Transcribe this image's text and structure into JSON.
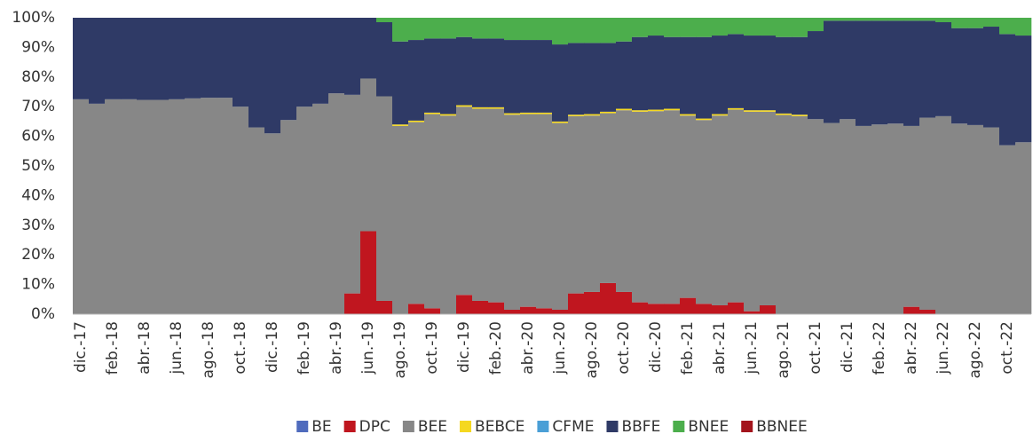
{
  "chart_data": {
    "type": "stacked_bar",
    "categories": [
      "dic.-17",
      null,
      "feb.-18",
      null,
      "abr.-18",
      null,
      "jun.-18",
      null,
      "ago.-18",
      null,
      "oct.-18",
      null,
      "dic.-18",
      null,
      "feb.-19",
      null,
      "abr.-19",
      null,
      "jun.-19",
      null,
      "ago.-19",
      null,
      "oct.-19",
      null,
      "dic.-19",
      null,
      "feb.-20",
      null,
      "abr.-20",
      null,
      "jun.-20",
      null,
      "ago.-20",
      null,
      "oct.-20",
      null,
      "dic.-20",
      null,
      "feb.-21",
      null,
      "abr.-21",
      null,
      "jun.-21",
      null,
      "ago.-21",
      null,
      "oct.-21",
      null,
      "dic.-21",
      null,
      "feb.-22",
      null,
      "abr.-22",
      null,
      "jun.-22",
      null,
      "ago.-22",
      null,
      "oct.-22",
      null
    ],
    "series": [
      {
        "name": "BE",
        "color": "#4f6bbd",
        "values": [
          0,
          0,
          0,
          0,
          0,
          0,
          0,
          0,
          0,
          0,
          0,
          0,
          0,
          0,
          0,
          0,
          0,
          0,
          0,
          0,
          0,
          0,
          0,
          0,
          0,
          0,
          0,
          0,
          0,
          0,
          0,
          0,
          0,
          0,
          0,
          0,
          0,
          0,
          0,
          0,
          0,
          0,
          0,
          0,
          0,
          0,
          0,
          0,
          0,
          0,
          0,
          0,
          0,
          0,
          0,
          0,
          0,
          0,
          0,
          0
        ]
      },
      {
        "name": "DPC",
        "color": "#c0161f",
        "values": [
          0,
          0,
          0,
          0,
          0,
          0,
          0,
          0,
          0,
          0,
          0,
          0,
          0,
          0,
          0,
          0,
          0,
          7,
          28,
          4.5,
          0,
          3.5,
          2,
          0,
          6.5,
          4.5,
          4,
          1.5,
          2.5,
          2,
          1.5,
          7,
          7.5,
          10.5,
          7.5,
          4,
          3.5,
          3.5,
          5.5,
          3.5,
          3,
          4,
          1,
          3,
          0,
          0,
          0,
          0,
          0,
          0,
          0,
          0,
          2.5,
          1.5,
          0,
          0,
          0,
          0,
          0,
          0
        ]
      },
      {
        "name": "BEE",
        "color": "#878787",
        "values": [
          72.5,
          71,
          72.5,
          72.5,
          72.3,
          72.3,
          72.5,
          72.8,
          73,
          73,
          70,
          63,
          61,
          65.5,
          70,
          71,
          74.5,
          67,
          51.5,
          69,
          63.5,
          61.3,
          65.5,
          67,
          63.5,
          64.8,
          65.3,
          65.8,
          65,
          65.5,
          63,
          59.8,
          59.5,
          57.3,
          61.3,
          64.3,
          65,
          65.3,
          61.5,
          62,
          64,
          65,
          67.3,
          65.3,
          67.2,
          66.8,
          65.8,
          64.5,
          65.8,
          63.5,
          64,
          64.3,
          61,
          64.8,
          66.8,
          64.3,
          63.8,
          63,
          57,
          58
        ]
      },
      {
        "name": "BEBCE",
        "color": "#f5d820",
        "values": [
          0,
          0,
          0,
          0,
          0,
          0,
          0,
          0,
          0,
          0,
          0,
          0,
          0,
          0,
          0,
          0,
          0,
          0,
          0,
          0,
          0.5,
          0.5,
          0.5,
          0.5,
          0.5,
          0.5,
          0.5,
          0.5,
          0.5,
          0.5,
          0.5,
          0.5,
          0.5,
          0.5,
          0.5,
          0.5,
          0.5,
          0.5,
          0.5,
          0.5,
          0.5,
          0.5,
          0.5,
          0.5,
          0.5,
          0.5,
          0,
          0,
          0,
          0,
          0,
          0,
          0,
          0,
          0,
          0,
          0,
          0,
          0,
          0
        ]
      },
      {
        "name": "CFME",
        "color": "#4a9fd6",
        "values": [
          0,
          0,
          0,
          0,
          0,
          0,
          0,
          0,
          0,
          0,
          0,
          0,
          0,
          0,
          0,
          0,
          0,
          0,
          0,
          0,
          0,
          0,
          0,
          0,
          0,
          0,
          0,
          0,
          0,
          0,
          0,
          0,
          0,
          0,
          0,
          0,
          0,
          0,
          0,
          0,
          0,
          0,
          0,
          0,
          0,
          0,
          0,
          0,
          0,
          0,
          0,
          0,
          0,
          0,
          0,
          0,
          0,
          0,
          0,
          0
        ]
      },
      {
        "name": "BBFE",
        "color": "#2f3a66",
        "values": [
          27.5,
          29,
          27.5,
          27.5,
          27.7,
          27.7,
          27.5,
          27.2,
          27,
          27,
          30,
          37,
          39,
          34.5,
          30,
          29,
          25.5,
          26,
          20.5,
          25,
          28,
          27.2,
          25,
          25.5,
          23,
          23.2,
          23.2,
          24.7,
          24.5,
          24.5,
          26,
          24.2,
          24,
          23.2,
          22.7,
          24.7,
          25,
          24.2,
          26,
          27.5,
          26.5,
          25,
          25.2,
          25.2,
          25.8,
          26.2,
          29.7,
          34.5,
          33.2,
          35.5,
          35,
          34.7,
          35.5,
          32.7,
          31.7,
          32.2,
          32.7,
          34,
          37.5,
          36
        ]
      },
      {
        "name": "BNEE",
        "color": "#4cae4c",
        "values": [
          0,
          0,
          0,
          0,
          0,
          0,
          0,
          0,
          0,
          0,
          0,
          0,
          0,
          0,
          0,
          0,
          0,
          0,
          0,
          1.5,
          8,
          7.5,
          7,
          7,
          6.5,
          7,
          7,
          7.5,
          7.5,
          7.5,
          9,
          8.5,
          8.5,
          8.5,
          8,
          6.5,
          6,
          6.5,
          6.5,
          6.5,
          6,
          5.5,
          6,
          6,
          6.5,
          6.5,
          4.5,
          1,
          1,
          1,
          1,
          1,
          1,
          1,
          1.5,
          3.5,
          3.5,
          3,
          5.5,
          6
        ]
      },
      {
        "name": "BBNEE",
        "color": "#a3141c",
        "values": [
          0,
          0,
          0,
          0,
          0,
          0,
          0,
          0,
          0,
          0,
          0,
          0,
          0,
          0,
          0,
          0,
          0,
          0,
          0,
          0,
          0,
          0,
          0,
          0,
          0,
          0,
          0,
          0,
          0,
          0,
          0,
          0,
          0,
          0,
          0,
          0,
          0,
          0,
          0,
          0,
          0,
          0,
          0,
          0,
          0,
          0,
          0,
          0,
          0,
          0,
          0,
          0,
          0,
          0,
          0,
          0,
          0,
          0,
          0,
          0
        ]
      }
    ],
    "ylim": [
      0,
      100
    ],
    "yticks": [
      {
        "value": 0,
        "label": "0%"
      },
      {
        "value": 10,
        "label": "10%"
      },
      {
        "value": 20,
        "label": "20%"
      },
      {
        "value": 30,
        "label": "30%"
      },
      {
        "value": 40,
        "label": "40%"
      },
      {
        "value": 50,
        "label": "50%"
      },
      {
        "value": 60,
        "label": "60%"
      },
      {
        "value": 70,
        "label": "70%"
      },
      {
        "value": 80,
        "label": "80%"
      },
      {
        "value": 90,
        "label": "90%"
      },
      {
        "value": 100,
        "label": "100%"
      }
    ],
    "grid": false,
    "legend": "bottom"
  }
}
